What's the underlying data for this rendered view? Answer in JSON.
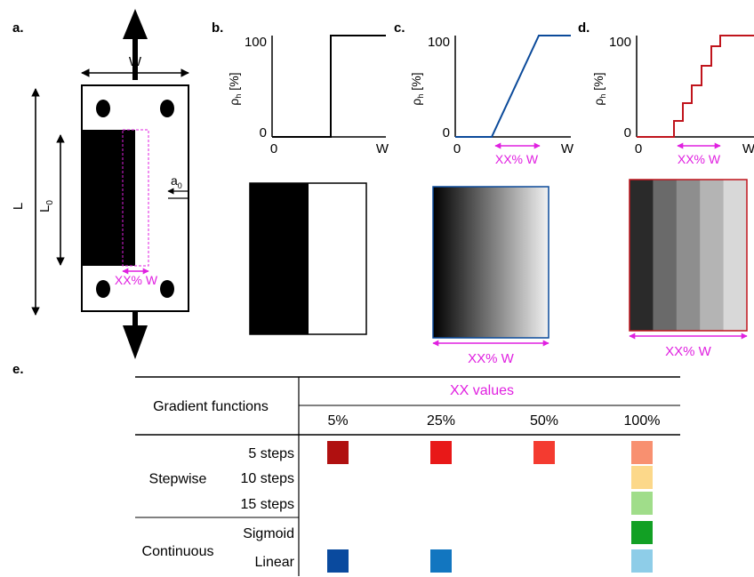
{
  "panels": {
    "a": {
      "letter": "a.",
      "width_label": "W",
      "length_label": "L",
      "l0_label": "L",
      "l0_sub": "0",
      "a0_label": "a",
      "a0_sub": "0",
      "xx_label": "XX% W"
    },
    "b": {
      "letter": "b.",
      "ylabel": "ρ",
      "ylabel_sub": "h",
      "ylabel_unit": "[%]",
      "y_top": "100",
      "y_zero": "0",
      "x_start": "0",
      "x_end": "W"
    },
    "c": {
      "letter": "c.",
      "ylabel": "ρ",
      "ylabel_sub": "h",
      "ylabel_unit": "[%]",
      "y_top": "100",
      "y_zero": "0",
      "x_start": "0",
      "x_end": "W",
      "xx_label": "XX% W",
      "bottom_label": "XX% W"
    },
    "d": {
      "letter": "d.",
      "ylabel": "ρ",
      "ylabel_sub": "h",
      "ylabel_unit": "[%]",
      "y_top": "100",
      "y_zero": "0",
      "x_start": "0",
      "x_end": "W",
      "xx_label": "XX% W",
      "bottom_label": "XX% W"
    },
    "e": {
      "letter": "e."
    }
  },
  "colors": {
    "magenta": "#e020e0",
    "blue_curve": "#0b4a9a",
    "red_curve": "#c0141c",
    "step_swatches": [
      "#2a2a2a",
      "#6a6a6a",
      "#8e8e8e",
      "#b4b4b4",
      "#d8d8d8"
    ]
  },
  "table": {
    "col_header_main": "Gradient functions",
    "xx_header": "XX values",
    "xx_columns": [
      "5%",
      "25%",
      "50%",
      "100%"
    ],
    "groups": [
      {
        "name": "Stepwise",
        "rows": [
          "5 steps",
          "10 steps",
          "15 steps"
        ]
      },
      {
        "name": "Continuous",
        "rows": [
          "Sigmoid",
          "Linear"
        ]
      }
    ],
    "swatches": {
      "5 steps": [
        "#b01010",
        "#e81818",
        "#f43b30",
        "#f89070"
      ],
      "10 steps": [
        null,
        null,
        null,
        "#fcd88a"
      ],
      "15 steps": [
        null,
        null,
        null,
        "#a0dd8a"
      ],
      "Sigmoid": [
        null,
        null,
        null,
        "#12a024"
      ],
      "Linear": [
        "#0a4a9e",
        "#1276c0",
        null,
        "#8ecde8"
      ]
    }
  }
}
